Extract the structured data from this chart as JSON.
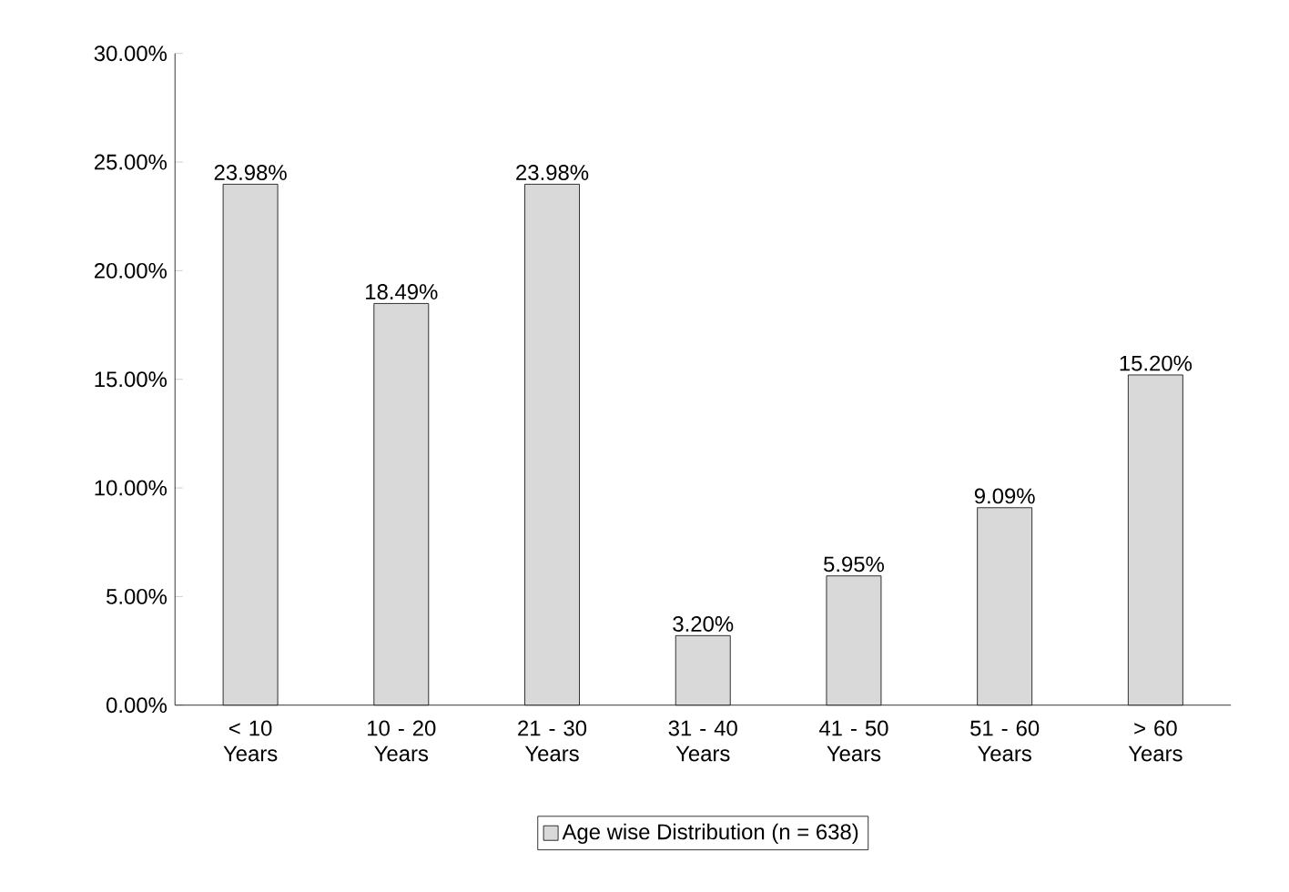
{
  "chart_data": {
    "type": "bar",
    "categories": [
      "< 10 Years",
      "10 - 20 Years",
      "21 - 30 Years",
      "31 - 40 Years",
      "41 - 50 Years",
      "51 - 60 Years",
      "> 60 Years"
    ],
    "series": [
      {
        "name": "Age wise Distribution (n = 638)",
        "color": "#d9d9d9",
        "values": [
          23.98,
          18.49,
          23.98,
          3.2,
          5.95,
          9.09,
          15.2
        ],
        "value_labels": [
          "23.98%",
          "18.49%",
          "23.98%",
          "3.20%",
          "5.95%",
          "9.09%",
          "15.20%"
        ]
      }
    ],
    "ylim": [
      0,
      30
    ],
    "yticks": [
      {
        "value": 0,
        "label": "0.00%"
      },
      {
        "value": 5,
        "label": "5.00%"
      },
      {
        "value": 10,
        "label": "10.00%"
      },
      {
        "value": 15,
        "label": "15.00%"
      },
      {
        "value": 20,
        "label": "20.00%"
      },
      {
        "value": 25,
        "label": "25.00%"
      },
      {
        "value": 30,
        "label": "30.00%"
      }
    ],
    "legend": "bottom"
  }
}
